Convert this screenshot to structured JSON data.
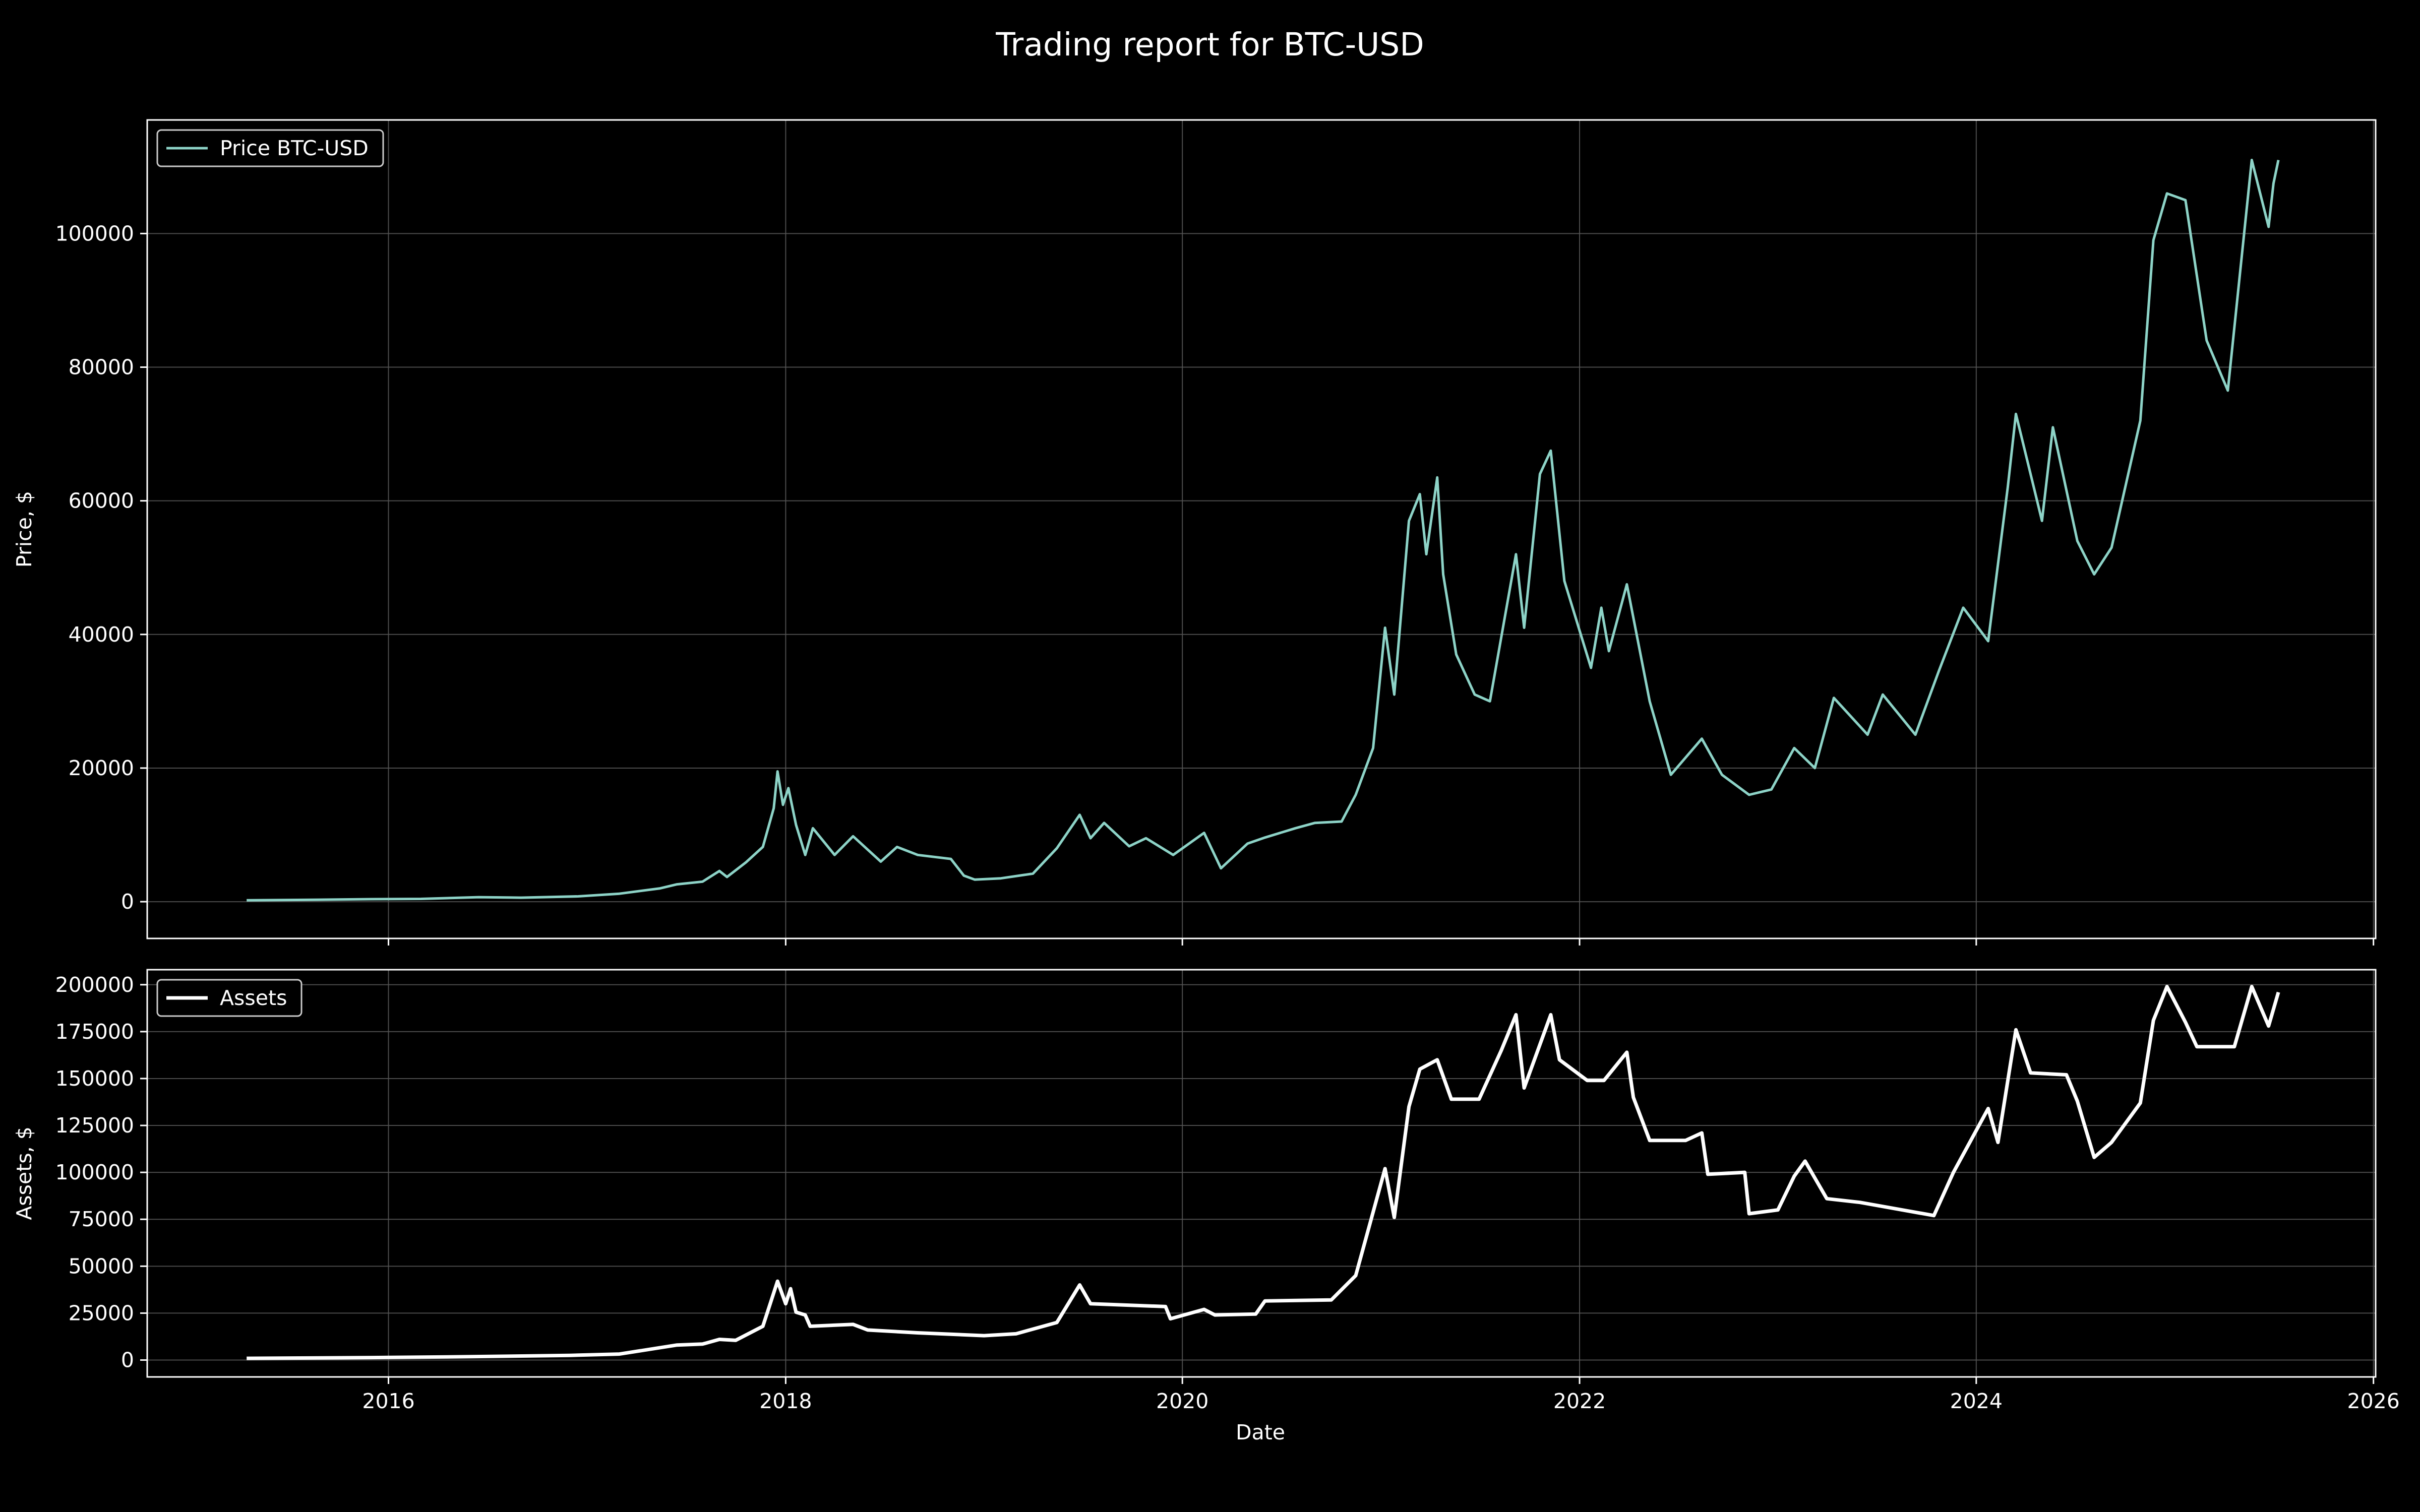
{
  "chart_data": {
    "type": "line",
    "title": "Trading report for BTC-USD",
    "xlabel": "Date",
    "x_tick_labels": [
      "2016",
      "2018",
      "2020",
      "2022",
      "2024",
      "2026"
    ],
    "xlim": [
      "2014-10-14",
      "2026-01-05"
    ],
    "grid": true,
    "panels": [
      {
        "ylabel": "Price, $",
        "ylim": [
          -5500,
          117000
        ],
        "yticks": [
          "0",
          "20000",
          "40000",
          "60000",
          "80000",
          "100000"
        ],
        "legend": "top-left",
        "series": [
          {
            "name": "Price BTC-USD",
            "color": "#8dd3c7",
            "points": [
              [
                "2015-04-15",
                220
              ],
              [
                "2015-08-01",
                280
              ],
              [
                "2015-12-01",
                380
              ],
              [
                "2016-03-01",
                420
              ],
              [
                "2016-06-15",
                680
              ],
              [
                "2016-09-01",
                600
              ],
              [
                "2016-12-15",
                800
              ],
              [
                "2017-03-01",
                1200
              ],
              [
                "2017-05-15",
                2000
              ],
              [
                "2017-06-15",
                2600
              ],
              [
                "2017-08-01",
                3000
              ],
              [
                "2017-09-01",
                4600
              ],
              [
                "2017-09-15",
                3700
              ],
              [
                "2017-10-20",
                5900
              ],
              [
                "2017-11-20",
                8200
              ],
              [
                "2017-12-10",
                14000
              ],
              [
                "2017-12-17",
                19500
              ],
              [
                "2017-12-27",
                14500
              ],
              [
                "2018-01-06",
                17000
              ],
              [
                "2018-01-20",
                11500
              ],
              [
                "2018-02-06",
                7000
              ],
              [
                "2018-02-20",
                11000
              ],
              [
                "2018-04-01",
                7000
              ],
              [
                "2018-05-05",
                9800
              ],
              [
                "2018-06-25",
                6000
              ],
              [
                "2018-07-25",
                8200
              ],
              [
                "2018-09-01",
                7000
              ],
              [
                "2018-11-01",
                6400
              ],
              [
                "2018-11-25",
                3900
              ],
              [
                "2018-12-15",
                3300
              ],
              [
                "2019-02-01",
                3500
              ],
              [
                "2019-04-01",
                4200
              ],
              [
                "2019-05-15",
                8000
              ],
              [
                "2019-06-26",
                13000
              ],
              [
                "2019-07-16",
                9500
              ],
              [
                "2019-08-10",
                11800
              ],
              [
                "2019-09-25",
                8300
              ],
              [
                "2019-10-26",
                9500
              ],
              [
                "2019-12-15",
                7000
              ],
              [
                "2020-02-10",
                10300
              ],
              [
                "2020-03-12",
                5000
              ],
              [
                "2020-04-30",
                8700
              ],
              [
                "2020-06-01",
                9600
              ],
              [
                "2020-07-27",
                11000
              ],
              [
                "2020-09-01",
                11800
              ],
              [
                "2020-10-20",
                12000
              ],
              [
                "2020-11-15",
                16000
              ],
              [
                "2020-12-17",
                23000
              ],
              [
                "2021-01-08",
                41000
              ],
              [
                "2021-01-25",
                31000
              ],
              [
                "2021-02-21",
                57000
              ],
              [
                "2021-03-13",
                61000
              ],
              [
                "2021-03-25",
                52000
              ],
              [
                "2021-04-14",
                63500
              ],
              [
                "2021-04-25",
                49000
              ],
              [
                "2021-05-19",
                37000
              ],
              [
                "2021-06-22",
                31000
              ],
              [
                "2021-07-20",
                30000
              ],
              [
                "2021-09-06",
                52000
              ],
              [
                "2021-09-21",
                41000
              ],
              [
                "2021-10-20",
                64000
              ],
              [
                "2021-11-09",
                67500
              ],
              [
                "2021-12-04",
                48000
              ],
              [
                "2022-01-22",
                35000
              ],
              [
                "2022-02-10",
                44000
              ],
              [
                "2022-02-24",
                37500
              ],
              [
                "2022-03-29",
                47500
              ],
              [
                "2022-05-10",
                30000
              ],
              [
                "2022-06-18",
                19000
              ],
              [
                "2022-08-14",
                24400
              ],
              [
                "2022-09-20",
                19000
              ],
              [
                "2022-11-09",
                16000
              ],
              [
                "2022-12-20",
                16800
              ],
              [
                "2023-01-31",
                23000
              ],
              [
                "2023-03-10",
                20000
              ],
              [
                "2023-04-14",
                30500
              ],
              [
                "2023-06-15",
                25000
              ],
              [
                "2023-07-13",
                31000
              ],
              [
                "2023-09-11",
                25000
              ],
              [
                "2023-10-24",
                34500
              ],
              [
                "2023-12-08",
                44000
              ],
              [
                "2024-01-23",
                39000
              ],
              [
                "2024-02-28",
                62000
              ],
              [
                "2024-03-14",
                73000
              ],
              [
                "2024-05-01",
                57000
              ],
              [
                "2024-05-21",
                71000
              ],
              [
                "2024-07-05",
                54000
              ],
              [
                "2024-08-05",
                49000
              ],
              [
                "2024-09-06",
                53000
              ],
              [
                "2024-10-29",
                72000
              ],
              [
                "2024-11-22",
                99000
              ],
              [
                "2024-12-17",
                106000
              ],
              [
                "2025-01-20",
                105000
              ],
              [
                "2025-02-28",
                84000
              ],
              [
                "2025-04-08",
                76500
              ],
              [
                "2025-05-22",
                111000
              ],
              [
                "2025-06-22",
                101000
              ],
              [
                "2025-07-01",
                107500
              ],
              [
                "2025-07-10",
                111000
              ]
            ]
          }
        ]
      },
      {
        "ylabel": "Assets, $",
        "ylim": [
          -9000,
          208000
        ],
        "yticks": [
          "0",
          "25000",
          "50000",
          "75000",
          "100000",
          "125000",
          "150000",
          "175000",
          "200000"
        ],
        "legend": "top-left",
        "series": [
          {
            "name": "Assets",
            "color": "#ffffff",
            "points": [
              [
                "2015-04-15",
                900
              ],
              [
                "2015-12-01",
                1300
              ],
              [
                "2016-06-01",
                1800
              ],
              [
                "2016-12-01",
                2500
              ],
              [
                "2017-03-01",
                3200
              ],
              [
                "2017-06-15",
                8000
              ],
              [
                "2017-08-01",
                8500
              ],
              [
                "2017-09-01",
                11000
              ],
              [
                "2017-10-01",
                10500
              ],
              [
                "2017-11-20",
                18000
              ],
              [
                "2017-12-17",
                42000
              ],
              [
                "2018-01-01",
                30000
              ],
              [
                "2018-01-10",
                38000
              ],
              [
                "2018-01-20",
                25500
              ],
              [
                "2018-02-06",
                24000
              ],
              [
                "2018-02-15",
                18000
              ],
              [
                "2018-05-05",
                19000
              ],
              [
                "2018-06-01",
                16000
              ],
              [
                "2018-09-01",
                14500
              ],
              [
                "2019-01-01",
                13000
              ],
              [
                "2019-03-01",
                14000
              ],
              [
                "2019-05-15",
                20000
              ],
              [
                "2019-06-26",
                40000
              ],
              [
                "2019-07-16",
                30000
              ],
              [
                "2019-12-01",
                28500
              ],
              [
                "2019-12-10",
                22000
              ],
              [
                "2020-02-10",
                27000
              ],
              [
                "2020-03-01",
                24000
              ],
              [
                "2020-05-15",
                24500
              ],
              [
                "2020-06-01",
                31500
              ],
              [
                "2020-10-01",
                32000
              ],
              [
                "2020-11-15",
                45000
              ],
              [
                "2021-01-08",
                102000
              ],
              [
                "2021-01-25",
                76000
              ],
              [
                "2021-02-21",
                135000
              ],
              [
                "2021-03-13",
                155000
              ],
              [
                "2021-04-14",
                160000
              ],
              [
                "2021-05-10",
                139000
              ],
              [
                "2021-06-30",
                139000
              ],
              [
                "2021-08-10",
                165000
              ],
              [
                "2021-09-06",
                184000
              ],
              [
                "2021-09-21",
                145000
              ],
              [
                "2021-11-09",
                184000
              ],
              [
                "2021-11-25",
                160000
              ],
              [
                "2022-01-15",
                149000
              ],
              [
                "2022-02-15",
                149000
              ],
              [
                "2022-03-29",
                164000
              ],
              [
                "2022-04-10",
                140000
              ],
              [
                "2022-05-10",
                117000
              ],
              [
                "2022-07-15",
                117000
              ],
              [
                "2022-08-14",
                121000
              ],
              [
                "2022-08-25",
                99000
              ],
              [
                "2022-11-01",
                100000
              ],
              [
                "2022-11-09",
                78000
              ],
              [
                "2023-01-01",
                80000
              ],
              [
                "2023-01-31",
                98000
              ],
              [
                "2023-02-20",
                106000
              ],
              [
                "2023-04-01",
                86000
              ],
              [
                "2023-06-01",
                84000
              ],
              [
                "2023-10-15",
                77000
              ],
              [
                "2023-11-20",
                100000
              ],
              [
                "2024-01-23",
                134000
              ],
              [
                "2024-02-10",
                116000
              ],
              [
                "2024-03-14",
                176000
              ],
              [
                "2024-04-10",
                153000
              ],
              [
                "2024-06-15",
                152000
              ],
              [
                "2024-07-05",
                138000
              ],
              [
                "2024-08-05",
                108000
              ],
              [
                "2024-09-06",
                116000
              ],
              [
                "2024-10-29",
                137000
              ],
              [
                "2024-11-22",
                181000
              ],
              [
                "2024-12-17",
                199000
              ],
              [
                "2025-01-20",
                180000
              ],
              [
                "2025-02-10",
                167000
              ],
              [
                "2025-04-20",
                167000
              ],
              [
                "2025-05-22",
                199000
              ],
              [
                "2025-06-22",
                178000
              ],
              [
                "2025-07-10",
                196000
              ]
            ]
          }
        ]
      }
    ]
  }
}
